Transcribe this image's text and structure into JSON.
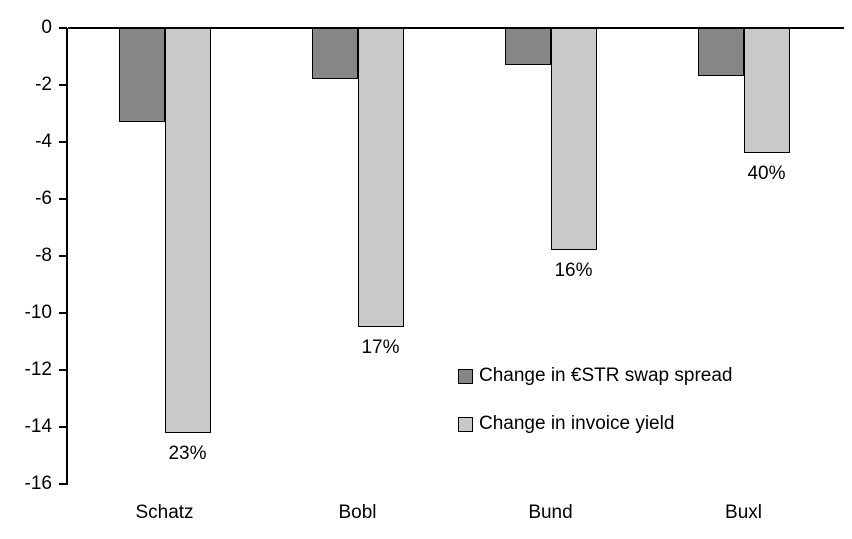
{
  "chart_data": {
    "type": "bar",
    "title": "",
    "xlabel": "",
    "ylabel": "",
    "categories": [
      "Schatz",
      "Bobl",
      "Bund",
      "Buxl"
    ],
    "series": [
      {
        "name": "Change in €STR swap spread",
        "color": "#868686",
        "values": [
          -3.3,
          -1.8,
          -1.3,
          -1.7
        ]
      },
      {
        "name": "Change in invoice yield",
        "color": "#c9c9c9",
        "values": [
          -14.2,
          -10.5,
          -7.8,
          -4.4
        ],
        "point_labels": [
          "23%",
          "17%",
          "16%",
          "40%"
        ]
      }
    ],
    "ylim": [
      -16,
      0
    ],
    "yticks": [
      0,
      -2,
      -4,
      -6,
      -8,
      -10,
      -12,
      -14,
      -16
    ],
    "grid": false,
    "legend_position": "inside-center-right",
    "axis_color": "#000000",
    "background_color": "#ffffff"
  }
}
